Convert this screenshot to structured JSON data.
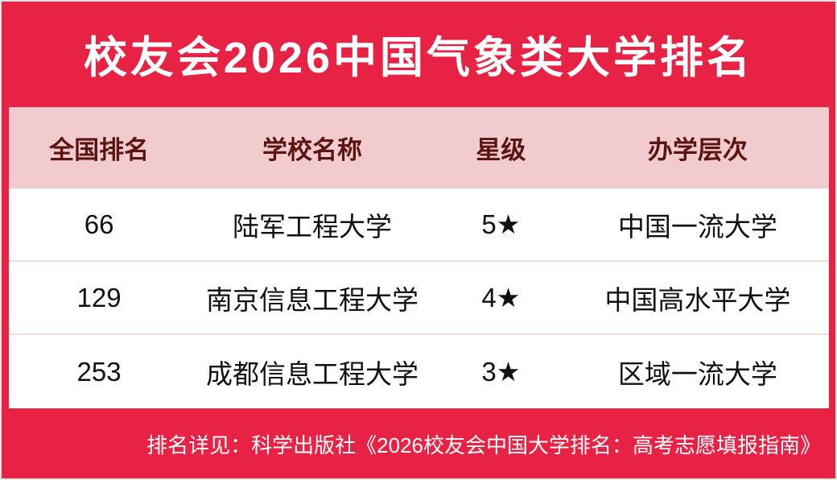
{
  "page": {
    "title": "校友会2026中国气象类大学排名",
    "footer_note": "排名详见：科学出版社《2026校友会中国大学排名：高考志愿填报指南》"
  },
  "table": {
    "columns": [
      "全国排名",
      "学校名称",
      "星级",
      "办学层次"
    ],
    "rows": [
      {
        "rank": "66",
        "school": "陆军工程大学",
        "stars": "5★",
        "level": "中国一流大学"
      },
      {
        "rank": "129",
        "school": "南京信息工程大学",
        "stars": "4★",
        "level": "中国高水平大学"
      },
      {
        "rank": "253",
        "school": "成都信息工程大学",
        "stars": "3★",
        "level": "区域一流大学"
      }
    ]
  },
  "chart_data": {
    "type": "table",
    "title": "校友会2026中国气象类大学排名",
    "columns": [
      "全国排名",
      "学校名称",
      "星级",
      "办学层次"
    ],
    "rows": [
      [
        "66",
        "陆军工程大学",
        "5★",
        "中国一流大学"
      ],
      [
        "129",
        "南京信息工程大学",
        "4★",
        "中国高水平大学"
      ],
      [
        "253",
        "成都信息工程大学",
        "3★",
        "区域一流大学"
      ]
    ]
  },
  "colors": {
    "background_red": "#e82245",
    "header_pink": "#f1cbcd",
    "header_text_maroon": "#5c1410",
    "row_divider": "#f6dbdd",
    "body_text": "#111111",
    "title_text": "#ffffff"
  }
}
